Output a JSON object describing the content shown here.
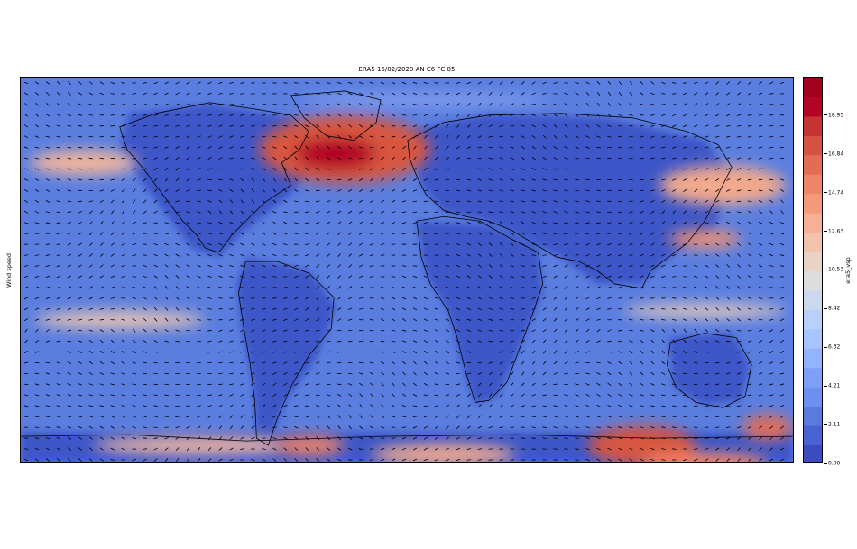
{
  "title": "ERA5 15/02/2020 AN C6 FC 05",
  "y_axis_label": "Wind speed",
  "colorbar": {
    "label": "era5_vsp",
    "ticks": [
      "0.00",
      "2.11",
      "4.21",
      "6.32",
      "8.42",
      "10.53",
      "12.63",
      "14.74",
      "16.84",
      "18.95"
    ],
    "min": 0.0,
    "max": 21.05,
    "colors": [
      "#3b4cc0",
      "#4a63d3",
      "#5b7ae0",
      "#6c8ff0",
      "#7f9ff7",
      "#93b4fd",
      "#a6c4fe",
      "#b9d0f9",
      "#cbd8ee",
      "#dcdddd",
      "#e8d3c6",
      "#f2c3ab",
      "#f6b094",
      "#f49a7b",
      "#ee8468",
      "#e36c55",
      "#d65244",
      "#c53334",
      "#b40426",
      "#a1001f"
    ]
  },
  "map": {
    "background_color": "#4a6fd6",
    "arrow_color": "#000000",
    "coastline_color": "#000000"
  }
}
